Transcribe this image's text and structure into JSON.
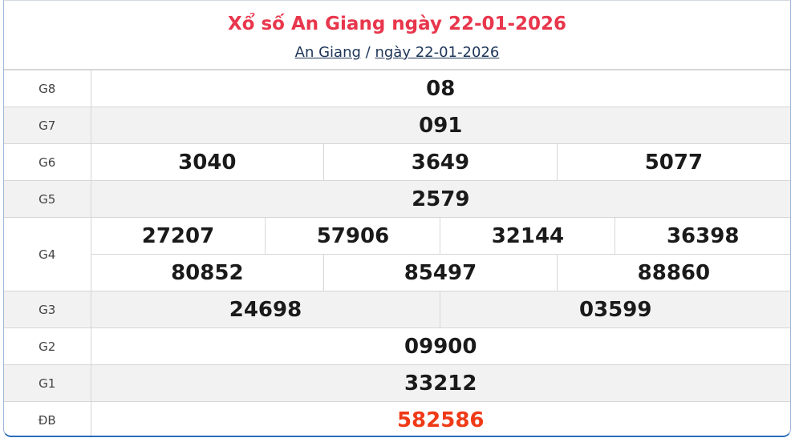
{
  "header": {
    "title": "Xổ số An Giang ngày 22-01-2026",
    "breadcrumb": {
      "province": "An Giang",
      "separator": "/",
      "date": "ngày 22-01-2026"
    }
  },
  "colors": {
    "title": "#e8364c",
    "special": "#f03a17",
    "link": "#1d3557"
  },
  "prizes": {
    "g8": {
      "label": "G8",
      "numbers": [
        "08"
      ]
    },
    "g7": {
      "label": "G7",
      "numbers": [
        "091"
      ]
    },
    "g6": {
      "label": "G6",
      "numbers": [
        "3040",
        "3649",
        "5077"
      ]
    },
    "g5": {
      "label": "G5",
      "numbers": [
        "2579"
      ]
    },
    "g4": {
      "label": "G4",
      "numbers": [
        "27207",
        "57906",
        "32144",
        "36398",
        "80852",
        "85497",
        "88860"
      ]
    },
    "g3": {
      "label": "G3",
      "numbers": [
        "24698",
        "03599"
      ]
    },
    "g2": {
      "label": "G2",
      "numbers": [
        "09900"
      ]
    },
    "g1": {
      "label": "G1",
      "numbers": [
        "33212"
      ]
    },
    "db": {
      "label": "ĐB",
      "numbers": [
        "582586"
      ]
    }
  }
}
